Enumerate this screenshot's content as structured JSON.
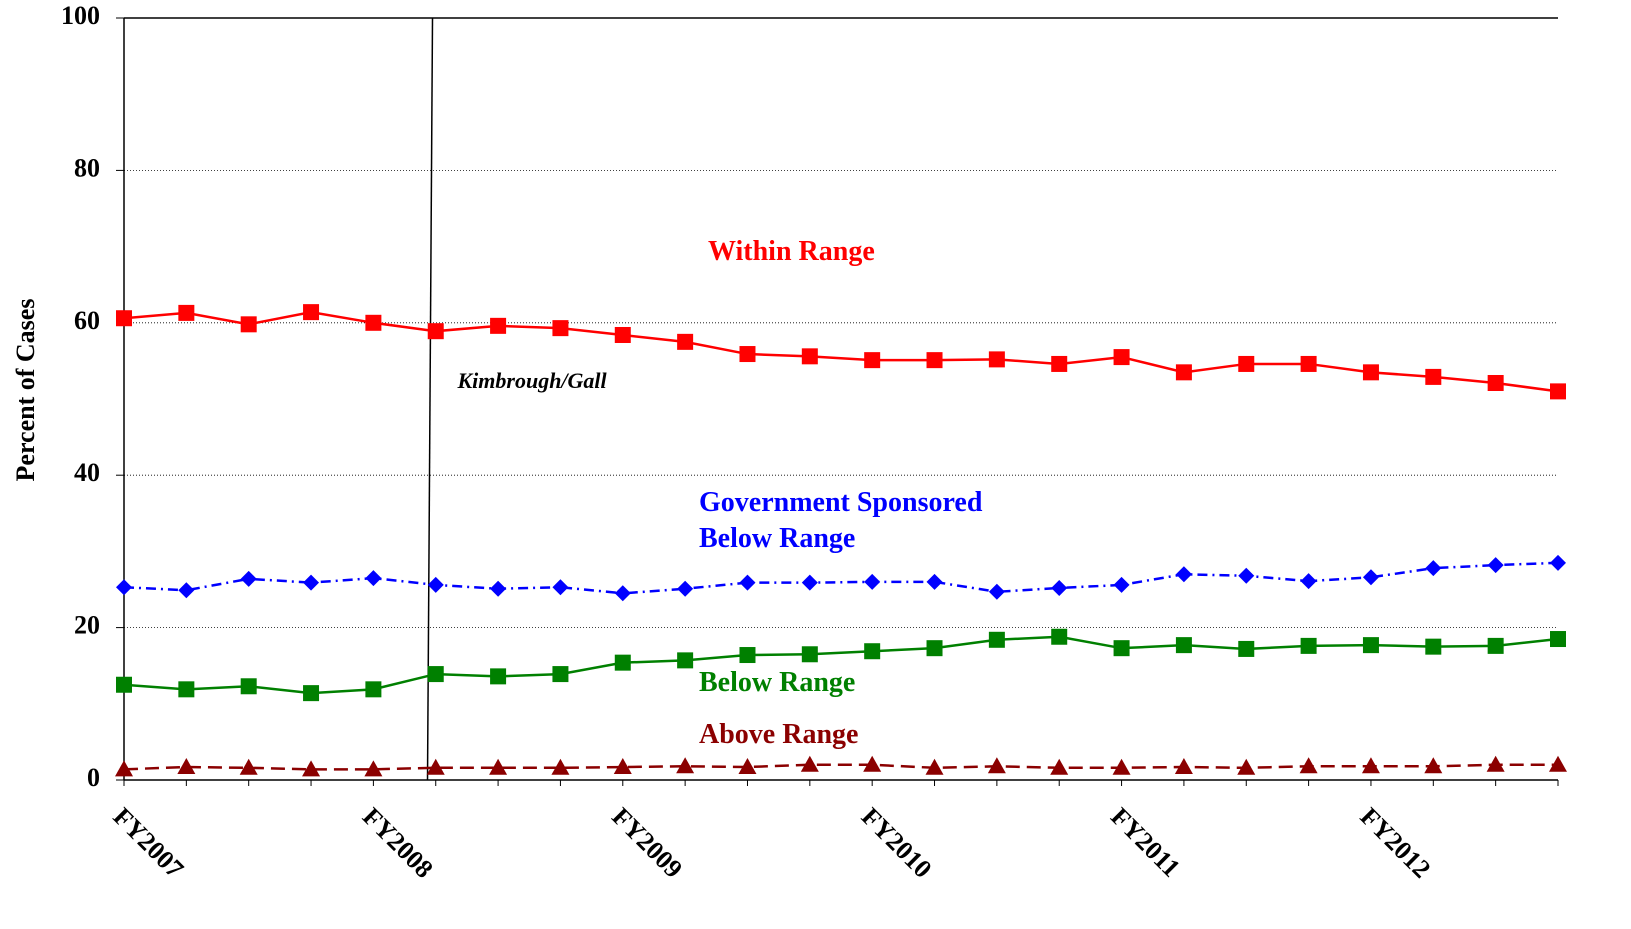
{
  "chart_data": {
    "type": "line",
    "y_label": "Percent of Cases",
    "categories": [
      "FY2007",
      null,
      null,
      null,
      "FY2008",
      null,
      null,
      null,
      "FY2009",
      null,
      null,
      null,
      "FY2010",
      null,
      null,
      null,
      "FY2011",
      null,
      null,
      null,
      "FY2012",
      null,
      null,
      null
    ],
    "series": [
      {
        "name": "Within Range",
        "color": "#ff0000",
        "marker": "square",
        "dash": "solid",
        "values": [
          60.6,
          61.3,
          59.8,
          61.4,
          60.0,
          58.9,
          59.6,
          59.3,
          58.4,
          57.5,
          55.9,
          55.6,
          55.1,
          55.1,
          55.2,
          54.6,
          55.5,
          53.5,
          54.6,
          54.6,
          53.5,
          52.9,
          52.1,
          51.0
        ]
      },
      {
        "name": "Government Sponsored Below Range",
        "color": "#0000ff",
        "marker": "diamond",
        "dash": "dashdot",
        "values": [
          25.3,
          24.9,
          26.4,
          25.9,
          26.5,
          25.6,
          25.1,
          25.3,
          24.5,
          25.1,
          25.9,
          25.9,
          26.0,
          26.0,
          24.7,
          25.2,
          25.6,
          27.0,
          26.8,
          26.1,
          26.6,
          27.8,
          28.2,
          28.5
        ]
      },
      {
        "name": "Below Range",
        "color": "#008000",
        "marker": "square",
        "dash": "solid",
        "values": [
          12.5,
          11.9,
          12.3,
          11.4,
          11.9,
          13.9,
          13.6,
          13.9,
          15.4,
          15.7,
          16.4,
          16.5,
          16.9,
          17.3,
          18.4,
          18.8,
          17.3,
          17.7,
          17.2,
          17.6,
          17.7,
          17.5,
          17.6,
          18.5
        ]
      },
      {
        "name": "Above Range",
        "color": "#8b0000",
        "marker": "triangle",
        "dash": "dashed",
        "values": [
          1.4,
          1.7,
          1.6,
          1.4,
          1.4,
          1.6,
          1.6,
          1.6,
          1.7,
          1.8,
          1.7,
          2.0,
          2.0,
          1.6,
          1.8,
          1.6,
          1.6,
          1.7,
          1.6,
          1.8,
          1.8,
          1.8,
          2.0,
          2.0
        ]
      }
    ],
    "annotation": {
      "text": "Kimbrough/Gall",
      "x": 4.9
    },
    "ylim": [
      0,
      100
    ],
    "yticks": [
      0,
      20,
      40,
      60,
      80,
      100
    ],
    "grid": true
  }
}
